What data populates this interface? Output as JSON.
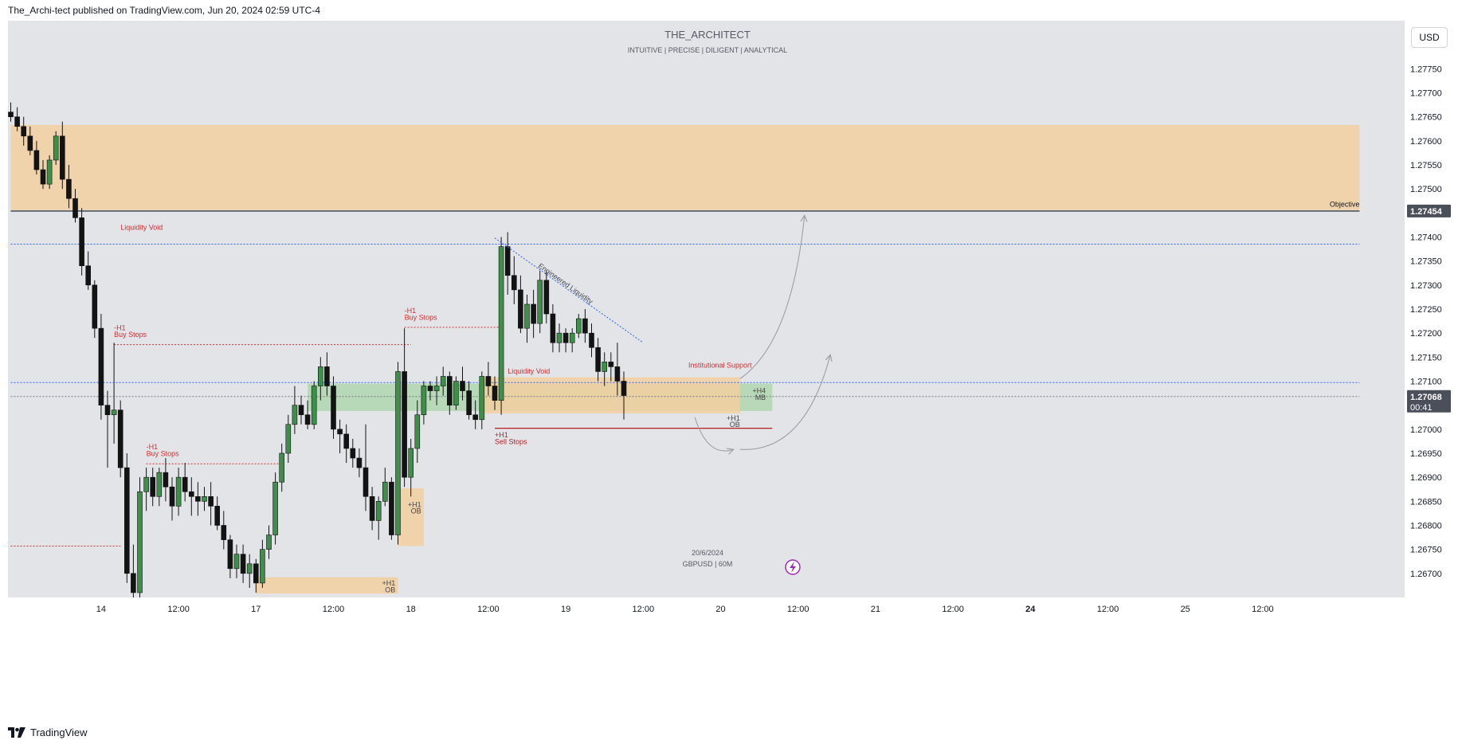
{
  "header": {
    "published_text": "The_Archi-tect published on TradingView.com, Jun 20, 2024 02:59 UTC-4"
  },
  "brand": {
    "title": "THE_ARCHITECT",
    "tagline": "INTUITIVE | PRECISE | DILIGENT | ANALYTICAL"
  },
  "currency_button": "USD",
  "footer": {
    "logo_text": "TradingView"
  },
  "watermark": {
    "date": "20/6/2024",
    "symbol": "GBPUSD | 60M"
  },
  "colors": {
    "bull": "#3d8f4a",
    "bear": "#131313",
    "zone_orange": "#f2cfa0",
    "zone_green": "#a8d5a8",
    "grid_bg": "#e3e4e8"
  },
  "chart_data": {
    "type": "candlestick",
    "symbol": "GBPUSD",
    "interval": "60M",
    "y_axis": {
      "min": 1.2665,
      "max": 1.2785,
      "tick_labels": [
        "1.27750",
        "1.27700",
        "1.27650",
        "1.27600",
        "1.27550",
        "1.27500",
        "1.27400",
        "1.27350",
        "1.27300",
        "1.27250",
        "1.27200",
        "1.27150",
        "1.27100",
        "1.27000",
        "1.26950",
        "1.26900",
        "1.26850",
        "1.26800",
        "1.26750",
        "1.26700"
      ],
      "tick_values": [
        1.2775,
        1.277,
        1.2765,
        1.276,
        1.2755,
        1.275,
        1.274,
        1.2735,
        1.273,
        1.2725,
        1.272,
        1.2715,
        1.271,
        1.27,
        1.2695,
        1.269,
        1.2685,
        1.268,
        1.2675,
        1.267
      ]
    },
    "x_axis": {
      "labels": [
        "14",
        "12:00",
        "17",
        "12:00",
        "18",
        "12:00",
        "19",
        "12:00",
        "20",
        "12:00",
        "21",
        "12:00",
        "24",
        "12:00",
        "25",
        "12:00"
      ],
      "label_index": [
        14,
        26,
        38,
        50,
        62,
        74,
        86,
        98,
        110,
        122,
        134,
        146,
        158,
        170,
        182,
        194
      ],
      "bold": [
        false,
        false,
        false,
        false,
        false,
        false,
        false,
        false,
        false,
        false,
        false,
        false,
        true,
        false,
        false,
        false
      ]
    },
    "price_badges": [
      {
        "value": 1.27454,
        "label": "1.27454"
      },
      {
        "value": 1.27068,
        "label": "1.27068",
        "countdown": "00:41"
      }
    ],
    "candles": [
      [
        1.2766,
        1.2768,
        1.2764,
        1.2765
      ],
      [
        1.2765,
        1.2767,
        1.2762,
        1.2763
      ],
      [
        1.2763,
        1.2765,
        1.2759,
        1.2761
      ],
      [
        1.2761,
        1.2763,
        1.2757,
        1.2758
      ],
      [
        1.2758,
        1.276,
        1.2753,
        1.2754
      ],
      [
        1.2754,
        1.2756,
        1.275,
        1.2751
      ],
      [
        1.2751,
        1.2757,
        1.275,
        1.2756
      ],
      [
        1.2756,
        1.2762,
        1.2755,
        1.2761
      ],
      [
        1.2761,
        1.2764,
        1.275,
        1.2752
      ],
      [
        1.2752,
        1.2755,
        1.2746,
        1.2748
      ],
      [
        1.2748,
        1.275,
        1.2743,
        1.2744
      ],
      [
        1.2744,
        1.2746,
        1.2732,
        1.2734
      ],
      [
        1.2734,
        1.2737,
        1.2729,
        1.273
      ],
      [
        1.273,
        1.2731,
        1.2719,
        1.2721
      ],
      [
        1.2721,
        1.2724,
        1.2702,
        1.2705
      ],
      [
        1.2705,
        1.2708,
        1.2692,
        1.2703
      ],
      [
        1.2703,
        1.2718,
        1.2697,
        1.2704
      ],
      [
        1.2704,
        1.2706,
        1.269,
        1.2692
      ],
      [
        1.2692,
        1.2695,
        1.2668,
        1.267
      ],
      [
        1.267,
        1.2676,
        1.2664,
        1.2666
      ],
      [
        1.2666,
        1.269,
        1.2665,
        1.2687
      ],
      [
        1.2687,
        1.2692,
        1.2683,
        1.269
      ],
      [
        1.269,
        1.2692,
        1.2684,
        1.2686
      ],
      [
        1.2686,
        1.2692,
        1.2684,
        1.2691
      ],
      [
        1.2691,
        1.2694,
        1.2685,
        1.2688
      ],
      [
        1.2688,
        1.269,
        1.2681,
        1.2684
      ],
      [
        1.2684,
        1.2692,
        1.2682,
        1.269
      ],
      [
        1.269,
        1.2693,
        1.2685,
        1.2687
      ],
      [
        1.2687,
        1.269,
        1.2682,
        1.2686
      ],
      [
        1.2686,
        1.2689,
        1.2682,
        1.2685
      ],
      [
        1.2685,
        1.2688,
        1.2683,
        1.2686
      ],
      [
        1.2686,
        1.2689,
        1.268,
        1.2684
      ],
      [
        1.2684,
        1.2686,
        1.2679,
        1.268
      ],
      [
        1.268,
        1.2683,
        1.2675,
        1.2677
      ],
      [
        1.2677,
        1.2678,
        1.2669,
        1.2671
      ],
      [
        1.2671,
        1.2676,
        1.2669,
        1.2674
      ],
      [
        1.2674,
        1.2676,
        1.2668,
        1.267
      ],
      [
        1.267,
        1.2674,
        1.2667,
        1.2672
      ],
      [
        1.2672,
        1.2673,
        1.2666,
        1.2668
      ],
      [
        1.2668,
        1.2677,
        1.2667,
        1.2675
      ],
      [
        1.2675,
        1.268,
        1.2673,
        1.2678
      ],
      [
        1.2678,
        1.2691,
        1.2676,
        1.2689
      ],
      [
        1.2689,
        1.2697,
        1.2687,
        1.2695
      ],
      [
        1.2695,
        1.2703,
        1.2693,
        1.2701
      ],
      [
        1.2701,
        1.2709,
        1.2699,
        1.2705
      ],
      [
        1.2705,
        1.2707,
        1.2701,
        1.2703
      ],
      [
        1.2703,
        1.2706,
        1.27,
        1.2701
      ],
      [
        1.2701,
        1.271,
        1.27,
        1.2709
      ],
      [
        1.2709,
        1.2715,
        1.2706,
        1.2713
      ],
      [
        1.2713,
        1.2716,
        1.2707,
        1.2709
      ],
      [
        1.2709,
        1.2711,
        1.2698,
        1.27
      ],
      [
        1.27,
        1.2702,
        1.2695,
        1.2699
      ],
      [
        1.2699,
        1.2701,
        1.2693,
        1.2696
      ],
      [
        1.2696,
        1.2698,
        1.2692,
        1.2694
      ],
      [
        1.2694,
        1.2696,
        1.269,
        1.2692
      ],
      [
        1.2692,
        1.2701,
        1.2683,
        1.2686
      ],
      [
        1.2686,
        1.2688,
        1.2679,
        1.2681
      ],
      [
        1.2681,
        1.2686,
        1.2677,
        1.2685
      ],
      [
        1.2685,
        1.2692,
        1.2684,
        1.2689
      ],
      [
        1.2689,
        1.269,
        1.2677,
        1.2678
      ],
      [
        1.2678,
        1.2714,
        1.2676,
        1.2712
      ],
      [
        1.2712,
        1.2721,
        1.2688,
        1.269
      ],
      [
        1.269,
        1.2698,
        1.2686,
        1.2696
      ],
      [
        1.2696,
        1.2706,
        1.2693,
        1.2703
      ],
      [
        1.2703,
        1.271,
        1.2701,
        1.2709
      ],
      [
        1.2709,
        1.271,
        1.2706,
        1.2708
      ],
      [
        1.2708,
        1.2711,
        1.2705,
        1.2709
      ],
      [
        1.2709,
        1.2713,
        1.2707,
        1.2711
      ],
      [
        1.2711,
        1.2712,
        1.2703,
        1.2705
      ],
      [
        1.2705,
        1.2711,
        1.2704,
        1.271
      ],
      [
        1.271,
        1.2713,
        1.2706,
        1.2708
      ],
      [
        1.2708,
        1.271,
        1.2702,
        1.2703
      ],
      [
        1.2703,
        1.2706,
        1.27,
        1.2702
      ],
      [
        1.2702,
        1.2712,
        1.27,
        1.2711
      ],
      [
        1.2711,
        1.2714,
        1.2707,
        1.2709
      ],
      [
        1.2709,
        1.2711,
        1.2704,
        1.2706
      ],
      [
        1.2706,
        1.274,
        1.2703,
        1.2738
      ],
      [
        1.2738,
        1.2741,
        1.2728,
        1.2732
      ],
      [
        1.2732,
        1.2736,
        1.2726,
        1.2729
      ],
      [
        1.2729,
        1.2732,
        1.272,
        1.2721
      ],
      [
        1.2721,
        1.2728,
        1.2718,
        1.2726
      ],
      [
        1.2726,
        1.2729,
        1.2719,
        1.2722
      ],
      [
        1.2722,
        1.2733,
        1.272,
        1.2731
      ],
      [
        1.2731,
        1.2733,
        1.2722,
        1.2724
      ],
      [
        1.2724,
        1.2726,
        1.2716,
        1.2718
      ],
      [
        1.2718,
        1.2722,
        1.2716,
        1.272
      ],
      [
        1.272,
        1.2721,
        1.2716,
        1.2718
      ],
      [
        1.2718,
        1.2721,
        1.2716,
        1.272
      ],
      [
        1.272,
        1.2724,
        1.2719,
        1.2723
      ],
      [
        1.2723,
        1.2725,
        1.2718,
        1.272
      ],
      [
        1.272,
        1.2722,
        1.2715,
        1.2717
      ],
      [
        1.2717,
        1.2719,
        1.271,
        1.2712
      ],
      [
        1.2712,
        1.2716,
        1.2709,
        1.2714
      ],
      [
        1.2714,
        1.2716,
        1.271,
        1.2713
      ],
      [
        1.2713,
        1.2718,
        1.2707,
        1.271
      ],
      [
        1.271,
        1.2712,
        1.2702,
        1.2707
      ]
    ],
    "zones": [
      {
        "name": "premium-zone",
        "x0": 0,
        "x1": 209,
        "y0": 1.27456,
        "y1": 1.27633,
        "color": "#f2cfa0"
      },
      {
        "name": "h4-mb-zone",
        "x0": 46,
        "x1": 118,
        "y0": 1.27038,
        "y1": 1.27095,
        "color": "#a8d5a8"
      },
      {
        "name": "h1-ob-zone-20",
        "x0": 73,
        "x1": 113,
        "y0": 1.27033,
        "y1": 1.27108,
        "color": "#f2cfa0"
      },
      {
        "name": "h1-ob-zone-18",
        "x0": 60,
        "x1": 64,
        "y0": 1.26757,
        "y1": 1.26877,
        "color": "#f2cfa0"
      },
      {
        "name": "h1-ob-zone-17",
        "x0": 38,
        "x1": 60,
        "y0": 1.26658,
        "y1": 1.26692,
        "color": "#f2cfa0"
      }
    ],
    "levels": [
      {
        "name": "objective-line",
        "value": 1.27454,
        "x0": 0,
        "x1": 209,
        "color": "#131722",
        "dash": "",
        "width": 1.2
      },
      {
        "name": "liquidity-void-line-1",
        "value": 1.27385,
        "x0": 0,
        "x1": 209,
        "color": "#2962ff",
        "dash": "2 2",
        "width": 1
      },
      {
        "name": "liquidity-void-line-2",
        "value": 1.27097,
        "x0": 0,
        "x1": 209,
        "color": "#2962ff",
        "dash": "2 2",
        "width": 1
      },
      {
        "name": "close-price-line",
        "value": 1.27068,
        "x0": 0,
        "x1": 209,
        "color": "#787b86",
        "dash": "2 2",
        "width": 1
      },
      {
        "name": "buy-stops-line-1",
        "value": 1.27176,
        "x0": 16,
        "x1": 62,
        "color": "#d32f2f",
        "dash": "2 2",
        "width": 1
      },
      {
        "name": "buy-stops-line-2",
        "value": 1.26928,
        "x0": 21,
        "x1": 42,
        "color": "#d32f2f",
        "dash": "2 2",
        "width": 1
      },
      {
        "name": "buy-stops-line-3",
        "value": 1.27212,
        "x0": 61,
        "x1": 76,
        "color": "#d32f2f",
        "dash": "2 2",
        "width": 1
      },
      {
        "name": "stops-line-left",
        "value": 1.26757,
        "x0": 0,
        "x1": 17,
        "color": "#d32f2f",
        "dash": "2 2",
        "width": 1
      },
      {
        "name": "sell-stops-line",
        "value": 1.27002,
        "x0": 75,
        "x1": 118,
        "color": "#b71c1c",
        "dash": "",
        "width": 1.2
      }
    ],
    "annotations": [
      {
        "name": "objective-label",
        "text": "Objective",
        "idx": 209,
        "price": 1.27463,
        "color": "#131722",
        "anchor": "end"
      },
      {
        "name": "liquidity-void-label-1",
        "text": "Liquidity Void",
        "idx": 17,
        "price": 1.27415,
        "color": "#d32f2f",
        "anchor": "start"
      },
      {
        "name": "liquidity-void-label-2",
        "text": "Liquidity Void",
        "idx": 77,
        "price": 1.27116,
        "color": "#d32f2f",
        "anchor": "start"
      },
      {
        "name": "institutional-support-label",
        "text": "Institutional Support",
        "idx": 105,
        "price": 1.27128,
        "color": "#d32f2f",
        "anchor": "start"
      },
      {
        "name": "buy-stops-tag-1",
        "text": "-H1",
        "idx": 16,
        "price": 1.27206,
        "color": "#d32f2f",
        "anchor": "start"
      },
      {
        "name": "buy-stops-label-1",
        "text": "Buy Stops",
        "idx": 16,
        "price": 1.27192,
        "color": "#d32f2f",
        "anchor": "start"
      },
      {
        "name": "buy-stops-tag-2",
        "text": "-H1",
        "idx": 21,
        "price": 1.26958,
        "color": "#d32f2f",
        "anchor": "start"
      },
      {
        "name": "buy-stops-label-2",
        "text": "Buy Stops",
        "idx": 21,
        "price": 1.26944,
        "color": "#d32f2f",
        "anchor": "start"
      },
      {
        "name": "buy-stops-tag-3",
        "text": "-H1",
        "idx": 61,
        "price": 1.27242,
        "color": "#d32f2f",
        "anchor": "start"
      },
      {
        "name": "buy-stops-label-3",
        "text": "Buy Stops",
        "idx": 61,
        "price": 1.27228,
        "color": "#d32f2f",
        "anchor": "start"
      },
      {
        "name": "sell-stops-tag",
        "text": "+H1",
        "idx": 75,
        "price": 1.26983,
        "color": "#b71c1c",
        "anchor": "start"
      },
      {
        "name": "sell-stops-label",
        "text": "Sell Stops",
        "idx": 75,
        "price": 1.26969,
        "color": "#b71c1c",
        "anchor": "start"
      },
      {
        "name": "h4-mb-tag",
        "text": "+H4",
        "idx": 117,
        "price": 1.27075,
        "color": "#444444",
        "anchor": "end"
      },
      {
        "name": "h4-mb-label",
        "text": "MB",
        "idx": 117,
        "price": 1.27061,
        "color": "#444444",
        "anchor": "end"
      },
      {
        "name": "h1-ob-tag-20",
        "text": "+H1",
        "idx": 113,
        "price": 1.27018,
        "color": "#444444",
        "anchor": "end"
      },
      {
        "name": "h1-ob-label-20",
        "text": "OB",
        "idx": 113,
        "price": 1.27005,
        "color": "#444444",
        "anchor": "end"
      },
      {
        "name": "h1-ob-tag-18",
        "text": "+H1",
        "idx": 63.6,
        "price": 1.26838,
        "color": "#444444",
        "anchor": "end"
      },
      {
        "name": "h1-ob-label-18",
        "text": "OB",
        "idx": 63.6,
        "price": 1.26825,
        "color": "#444444",
        "anchor": "end"
      },
      {
        "name": "h1-ob-tag-17",
        "text": "+H1",
        "idx": 59.6,
        "price": 1.26675,
        "color": "#444444",
        "anchor": "end"
      },
      {
        "name": "h1-ob-label-17",
        "text": "OB",
        "idx": 59.6,
        "price": 1.26661,
        "color": "#444444",
        "anchor": "end"
      }
    ],
    "engineered_liquidity": {
      "text": "Engineered Liquidity",
      "from_idx": 75,
      "from_price": 1.27398,
      "to_idx": 98,
      "to_price": 1.2718
    },
    "projections": [
      {
        "name": "projection-path-1",
        "from_idx": 113,
        "from_price": 1.27105,
        "ctrl_idx": 121,
        "ctrl_price": 1.2718,
        "to_idx": 123,
        "to_price": 1.27445
      },
      {
        "name": "projection-path-2",
        "from_idx": 106,
        "from_price": 1.27025,
        "ctrl_idx": 108,
        "ctrl_price": 1.2694,
        "to_idx": 112,
        "to_price": 1.26958
      },
      {
        "name": "projection-path-3",
        "from_idx": 113,
        "from_price": 1.26958,
        "ctrl_idx": 123,
        "ctrl_price": 1.2695,
        "to_idx": 127,
        "to_price": 1.27155
      }
    ]
  }
}
